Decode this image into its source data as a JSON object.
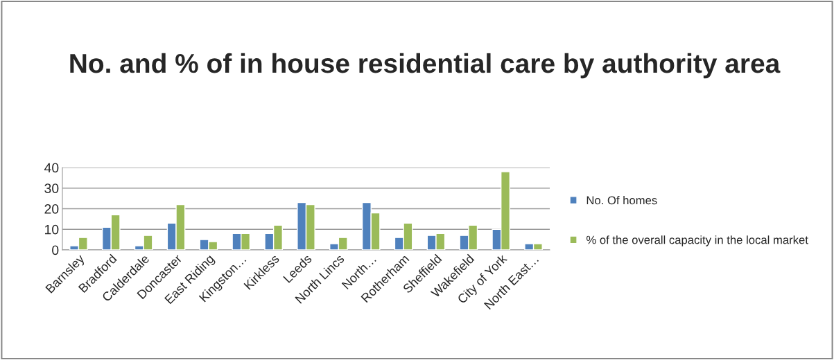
{
  "chart_data": {
    "type": "bar",
    "title": "No. and % of in house residential care by authority area",
    "categories": [
      "Barnsley",
      "Bradford",
      "Calderdale",
      "Doncaster",
      "East Riding",
      "Kingston…",
      "Kirkless",
      "Leeds",
      "North Lincs",
      "North…",
      "Rotherham",
      "Sheffield",
      "Wakefield",
      "City of York",
      "North East…"
    ],
    "series": [
      {
        "name": "No. Of homes",
        "color": "#4f81bd",
        "values": [
          2,
          11,
          2,
          13,
          5,
          8,
          8,
          23,
          3,
          23,
          6,
          7,
          7,
          10,
          3
        ]
      },
      {
        "name": "% of the overall capacity in the local market",
        "color": "#9bbb59",
        "values": [
          6,
          17,
          7,
          22,
          4,
          8,
          12,
          22,
          6,
          18,
          13,
          8,
          12,
          38,
          3
        ]
      }
    ],
    "ylim": [
      0,
      40
    ],
    "yticks": [
      0,
      10,
      20,
      30,
      40
    ],
    "grid": "y",
    "legend": "right"
  }
}
